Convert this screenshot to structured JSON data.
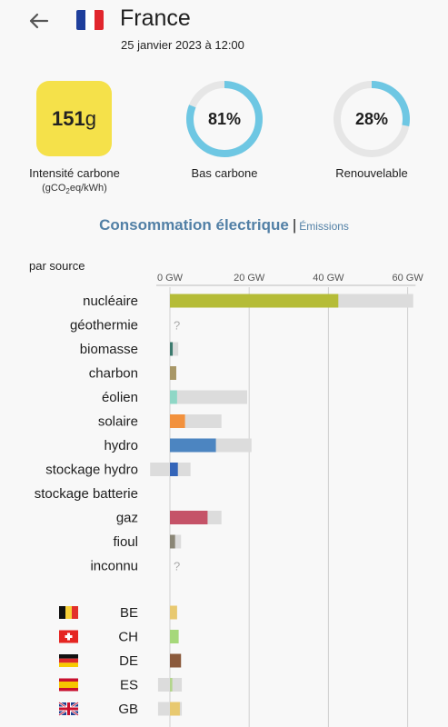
{
  "header": {
    "back_icon": "arrow-left-icon",
    "flag_icon": "flag-france-icon",
    "country": "France",
    "datetime": "25 janvier 2023 à 12:00"
  },
  "metrics": {
    "carbon_intensity": {
      "value_number": "151",
      "value_unit": "g",
      "label": "Intensité carbone",
      "unit_prefix": "(gCO",
      "unit_sub": "2",
      "unit_suffix": "eq/kWh)",
      "color": "#f5e14a"
    },
    "low_carbon": {
      "value": "81%",
      "fraction": 0.81,
      "label": "Bas carbone"
    },
    "renewable": {
      "value": "28%",
      "fraction": 0.28,
      "label": "Renouvelable"
    },
    "ring_color": "#6ec7e3",
    "ring_track_color": "#e6e6e6"
  },
  "tabs": {
    "consumption": "Consommation électrique",
    "separator": "|",
    "emissions": "Émissions"
  },
  "chart_data": {
    "type": "bar",
    "orientation": "horizontal",
    "section_label": "par source",
    "xlim": [
      -5,
      62
    ],
    "x_ticks": [
      0,
      20,
      40,
      60
    ],
    "x_tick_labels": [
      "0 GW",
      "20 GW",
      "40 GW",
      "60 GW"
    ],
    "grid": true,
    "sources": [
      {
        "name": "nucléaire",
        "value": 42.5,
        "capacity": 61.4,
        "color": "#b5bc37"
      },
      {
        "name": "géothermie",
        "value": null,
        "capacity": null,
        "color": "#cccccc",
        "unknown": "?"
      },
      {
        "name": "biomasse",
        "value": 0.7,
        "capacity": 2.1,
        "color": "#3c7a6e"
      },
      {
        "name": "charbon",
        "value": 1.6,
        "capacity": 1.6,
        "color": "#a89767"
      },
      {
        "name": "éolien",
        "value": 1.8,
        "capacity": 19.5,
        "color": "#8fd7c6"
      },
      {
        "name": "solaire",
        "value": 3.8,
        "capacity": 13.0,
        "color": "#f2913d"
      },
      {
        "name": "hydro",
        "value": 11.6,
        "capacity": 20.6,
        "color": "#4c85c1"
      },
      {
        "name": "stockage hydro",
        "value": 2.0,
        "capacity": 5.2,
        "negative_capacity": -5.0,
        "color": "#3465b9"
      },
      {
        "name": "stockage batterie",
        "value": null,
        "capacity": null,
        "color": "#cccccc"
      },
      {
        "name": "gaz",
        "value": 9.5,
        "capacity": 13.0,
        "color": "#c55368"
      },
      {
        "name": "fioul",
        "value": 1.3,
        "capacity": 2.8,
        "color": "#8a8676"
      },
      {
        "name": "inconnu",
        "value": null,
        "capacity": null,
        "color": "#cccccc",
        "unknown": "?"
      }
    ],
    "exchanges": [
      {
        "name": "BE",
        "flag_icon": "flag-belgium-icon",
        "value": 1.8,
        "capacity": 1.8,
        "color": "#e8c970"
      },
      {
        "name": "CH",
        "flag_icon": "flag-switzerland-icon",
        "value": 2.2,
        "capacity": 2.2,
        "color": "#a6d87a"
      },
      {
        "name": "DE",
        "flag_icon": "flag-germany-icon",
        "value": 2.8,
        "capacity": 2.8,
        "color": "#8b5a3c"
      },
      {
        "name": "ES",
        "flag_icon": "flag-spain-icon",
        "value": 0.6,
        "capacity": 3.0,
        "negative_capacity": -3.0,
        "color": "#b3d58c"
      },
      {
        "name": "GB",
        "flag_icon": "flag-uk-icon",
        "value": 2.5,
        "capacity": 3.0,
        "negative_capacity": -3.0,
        "color": "#e8c970"
      }
    ]
  }
}
